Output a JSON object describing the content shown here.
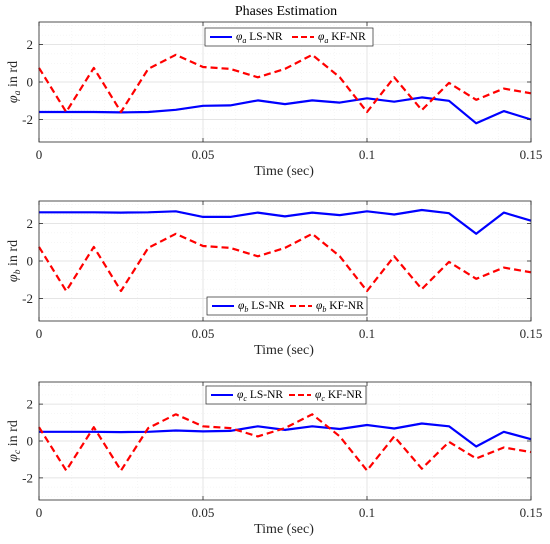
{
  "figure_title": "Phases Estimation",
  "chart_data": [
    {
      "type": "line",
      "title": "Phases Estimation",
      "xlabel": "Time (sec)",
      "ylabel": "φa in rd",
      "ylabel_base": "φ",
      "ylabel_sub": "a",
      "ylabel_rest": " in rd",
      "xlim": [
        0,
        0.15
      ],
      "ylim": [
        -3.2,
        3.2
      ],
      "xticks": [
        0,
        0.05,
        0.1,
        0.15
      ],
      "xtick_labels": [
        "0",
        "0.05",
        "0.1",
        "0.15"
      ],
      "yticks": [
        -2,
        0,
        2
      ],
      "ytick_labels": [
        "-2",
        "0",
        "2"
      ],
      "grid": true,
      "legend_position": "top-right",
      "x": [
        0,
        0.0083,
        0.0167,
        0.025,
        0.0333,
        0.0417,
        0.05,
        0.0583,
        0.0667,
        0.075,
        0.0833,
        0.0917,
        0.1,
        0.1083,
        0.1167,
        0.125,
        0.1333,
        0.1417,
        0.15
      ],
      "series": [
        {
          "name": "φa LS-NR",
          "name_base": "φ",
          "name_sub": "a",
          "name_rest": " LS-NR",
          "color": "#0000ff",
          "style": "solid",
          "values": [
            -1.6,
            -1.6,
            -1.6,
            -1.62,
            -1.6,
            -1.48,
            -1.27,
            -1.25,
            -0.98,
            -1.18,
            -0.98,
            -1.1,
            -0.87,
            -1.05,
            -0.82,
            -1.0,
            -2.2,
            -1.55,
            -2.0
          ]
        },
        {
          "name": "φa KF-NR",
          "name_base": "φ",
          "name_sub": "a",
          "name_rest": " KF-NR",
          "color": "#ff0000",
          "style": "dashed",
          "values": [
            0.75,
            -1.6,
            0.75,
            -1.6,
            0.7,
            1.45,
            0.8,
            0.7,
            0.25,
            0.7,
            1.45,
            0.25,
            -1.6,
            0.25,
            -1.5,
            -0.05,
            -0.95,
            -0.35,
            -0.6
          ]
        }
      ]
    },
    {
      "type": "line",
      "xlabel": "Time (sec)",
      "ylabel": "φb in rd",
      "ylabel_base": "φ",
      "ylabel_sub": "b",
      "ylabel_rest": " in rd",
      "xlim": [
        0,
        0.15
      ],
      "ylim": [
        -3.2,
        3.2
      ],
      "xticks": [
        0,
        0.05,
        0.1,
        0.15
      ],
      "xtick_labels": [
        "0",
        "0.05",
        "0.1",
        "0.15"
      ],
      "yticks": [
        -2,
        0,
        2
      ],
      "ytick_labels": [
        "-2",
        "0",
        "2"
      ],
      "grid": true,
      "legend_position": "bottom-right",
      "x": [
        0,
        0.0083,
        0.0167,
        0.025,
        0.0333,
        0.0417,
        0.05,
        0.0583,
        0.0667,
        0.075,
        0.0833,
        0.0917,
        0.1,
        0.1083,
        0.1167,
        0.125,
        0.1333,
        0.1417,
        0.15
      ],
      "series": [
        {
          "name": "φb LS-NR",
          "name_base": "φ",
          "name_sub": "b",
          "name_rest": " LS-NR",
          "color": "#0000ff",
          "style": "solid",
          "values": [
            2.6,
            2.6,
            2.6,
            2.58,
            2.6,
            2.65,
            2.35,
            2.35,
            2.58,
            2.38,
            2.58,
            2.45,
            2.65,
            2.48,
            2.72,
            2.55,
            1.45,
            2.58,
            2.15
          ]
        },
        {
          "name": "φb KF-NR",
          "name_base": "φ",
          "name_sub": "b",
          "name_rest": " KF-NR",
          "color": "#ff0000",
          "style": "dashed",
          "values": [
            0.75,
            -1.6,
            0.75,
            -1.6,
            0.7,
            1.45,
            0.8,
            0.7,
            0.25,
            0.7,
            1.45,
            0.25,
            -1.6,
            0.25,
            -1.5,
            -0.05,
            -0.95,
            -0.35,
            -0.6
          ]
        }
      ]
    },
    {
      "type": "line",
      "xlabel": "Time (sec)",
      "ylabel": "φc in rd",
      "ylabel_base": "φ",
      "ylabel_sub": "c",
      "ylabel_rest": " in rd",
      "xlim": [
        0,
        0.15
      ],
      "ylim": [
        -3.2,
        3.2
      ],
      "xticks": [
        0,
        0.05,
        0.1,
        0.15
      ],
      "xtick_labels": [
        "0",
        "0.05",
        "0.1",
        "0.15"
      ],
      "yticks": [
        -2,
        0,
        2
      ],
      "ytick_labels": [
        "-2",
        "0",
        "2"
      ],
      "grid": true,
      "legend_position": "top-center",
      "x": [
        0,
        0.0083,
        0.0167,
        0.025,
        0.0333,
        0.0417,
        0.05,
        0.0583,
        0.0667,
        0.075,
        0.0833,
        0.0917,
        0.1,
        0.1083,
        0.1167,
        0.125,
        0.1333,
        0.1417,
        0.15
      ],
      "series": [
        {
          "name": "φc LS-NR",
          "name_base": "φ",
          "name_sub": "c",
          "name_rest": " LS-NR",
          "color": "#0000ff",
          "style": "solid",
          "values": [
            0.5,
            0.5,
            0.5,
            0.48,
            0.5,
            0.57,
            0.52,
            0.55,
            0.8,
            0.6,
            0.8,
            0.65,
            0.87,
            0.68,
            0.95,
            0.8,
            -0.3,
            0.5,
            0.1
          ]
        },
        {
          "name": "φc KF-NR",
          "name_base": "φ",
          "name_sub": "c",
          "name_rest": " KF-NR",
          "color": "#ff0000",
          "style": "dashed",
          "values": [
            0.75,
            -1.6,
            0.75,
            -1.6,
            0.7,
            1.45,
            0.8,
            0.7,
            0.25,
            0.7,
            1.45,
            0.25,
            -1.6,
            0.25,
            -1.5,
            -0.05,
            -0.95,
            -0.35,
            -0.6
          ]
        }
      ]
    }
  ]
}
